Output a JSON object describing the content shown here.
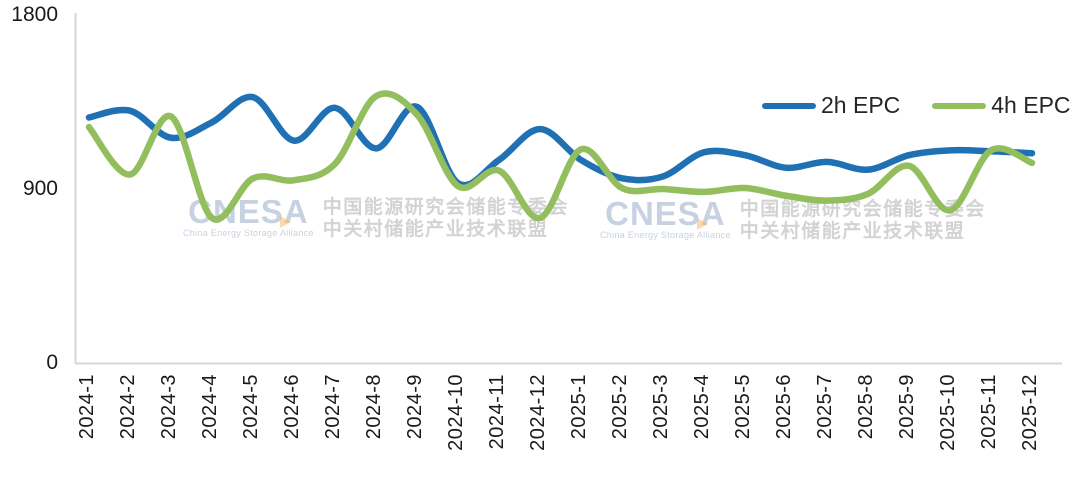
{
  "page": {
    "background": "#ffffff"
  },
  "watermark": {
    "logo": "CNESA",
    "subtitle": "China Energy Storage Alliance",
    "line1": "中国能源研究会储能专委会",
    "line2": "中关村储能产业技术联盟",
    "logo_color": "#b0bfd6",
    "text_color": "#c6c6c6",
    "accent_color": "#f3b050"
  },
  "axis": {
    "y_ticks": [
      0,
      900,
      1800
    ],
    "line_color": "#d6d6d6"
  },
  "chart_data": {
    "type": "line",
    "title": "",
    "xlabel": "",
    "ylabel": "",
    "ylim": [
      0,
      1800
    ],
    "y_ticks": [
      0,
      900,
      1800
    ],
    "grid": false,
    "smooth": true,
    "legend_position": "top-right",
    "categories": [
      "2024-1",
      "2024-2",
      "2024-3",
      "2024-4",
      "2024-5",
      "2024-6",
      "2024-7",
      "2024-8",
      "2024-9",
      "2024-10",
      "2024-11",
      "2024-12",
      "2025-1",
      "2025-2",
      "2025-3",
      "2025-4",
      "2025-5",
      "2025-6",
      "2025-7",
      "2025-8",
      "2025-9",
      "2025-10",
      "2025-11",
      "2025-12"
    ],
    "series": [
      {
        "name": "2h EPC",
        "color": "#2070b4",
        "values": [
          1270,
          1305,
          1165,
          1245,
          1375,
          1150,
          1320,
          1110,
          1325,
          930,
          1050,
          1210,
          1050,
          955,
          965,
          1090,
          1075,
          1010,
          1040,
          1000,
          1075,
          1100,
          1095,
          1085
        ]
      },
      {
        "name": "4h EPC",
        "color": "#92be5e",
        "values": [
          1220,
          975,
          1275,
          750,
          955,
          945,
          1030,
          1380,
          1285,
          915,
          995,
          750,
          1105,
          905,
          900,
          885,
          905,
          865,
          840,
          875,
          1020,
          790,
          1100,
          1035
        ]
      }
    ]
  }
}
